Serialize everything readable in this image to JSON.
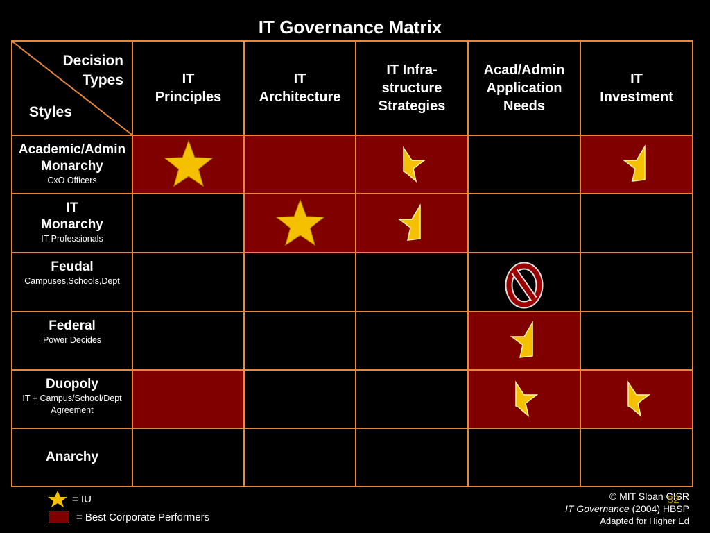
{
  "title": "IT Governance Matrix",
  "corner": {
    "decision_types": "Decision\nTypes",
    "styles": "Styles"
  },
  "columns": [
    "IT\nPrinciples",
    "IT\nArchitecture",
    "IT Infra-\nstructure\nStrategies",
    "Acad/Admin\nApplication\nNeeds",
    "IT\nInvestment"
  ],
  "rows": [
    {
      "main": "Academic/Admin\nMonarchy",
      "sub": "CxO Officers"
    },
    {
      "main": "IT\nMonarchy",
      "sub": "IT Professionals"
    },
    {
      "main": "Feudal",
      "sub": "Campuses,Schools,Dept"
    },
    {
      "main": "Federal",
      "sub": "Power Decides"
    },
    {
      "main": "Duopoly",
      "sub": "IT + Campus/School/Dept\nAgreement"
    },
    {
      "main": "Anarchy",
      "sub": ""
    }
  ],
  "best_performer_cells": [
    [
      0,
      0
    ],
    [
      0,
      1
    ],
    [
      0,
      2
    ],
    [
      0,
      4
    ],
    [
      1,
      1
    ],
    [
      1,
      2
    ],
    [
      3,
      3
    ],
    [
      4,
      0
    ],
    [
      4,
      3
    ],
    [
      4,
      4
    ]
  ],
  "iu_marks": [
    {
      "row": 0,
      "col": 0,
      "type": "full-star"
    },
    {
      "row": 0,
      "col": 2,
      "type": "partial-star-a"
    },
    {
      "row": 0,
      "col": 4,
      "type": "partial-star-b"
    },
    {
      "row": 1,
      "col": 1,
      "type": "full-star"
    },
    {
      "row": 1,
      "col": 2,
      "type": "partial-star-b"
    },
    {
      "row": 2,
      "col": 3,
      "type": "no-sign"
    },
    {
      "row": 3,
      "col": 3,
      "type": "partial-star-b"
    },
    {
      "row": 4,
      "col": 3,
      "type": "partial-star-a"
    },
    {
      "row": 4,
      "col": 4,
      "type": "partial-star-a"
    }
  ],
  "colors": {
    "grid_line": "#e8873a",
    "best_fill": "#800000",
    "star": "#f5c000"
  },
  "legend": {
    "star_label": "= IU",
    "swatch_label": "= Best Corporate Performers"
  },
  "credit": {
    "line1": "© MIT Sloan CISR",
    "line2_italic": "IT Governance",
    "line2_rest": " (2004) HBSP",
    "line3": "Adapted for Higher Ed"
  },
  "slide_number": "32"
}
